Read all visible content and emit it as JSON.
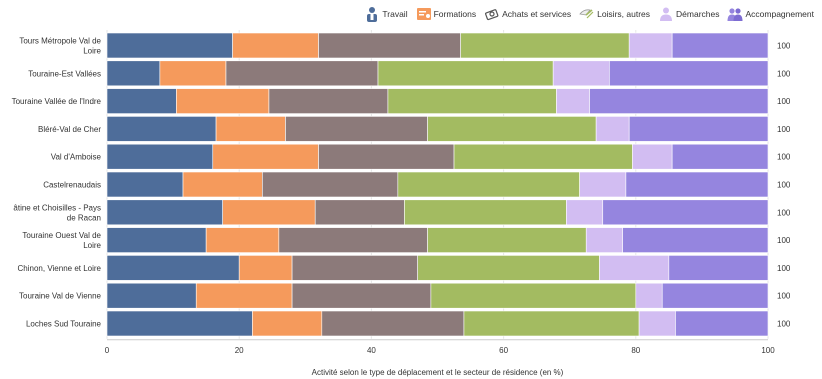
{
  "legend": {
    "items": [
      {
        "label": "Travail",
        "icon": "worker-icon",
        "color": "#4e6d9a"
      },
      {
        "label": "Formations",
        "icon": "diploma-icon",
        "color": "#f59a5c"
      },
      {
        "label": "Achats et services",
        "icon": "money-icon",
        "color": "#8c7a7a"
      },
      {
        "label": "Loisirs, autres",
        "icon": "umbrella-icon",
        "color": "#a3bb61"
      },
      {
        "label": "Démarches",
        "icon": "people-icon",
        "color": "#d2bdf2"
      },
      {
        "label": "Accompagnement",
        "icon": "group-icon",
        "color": "#9585df"
      }
    ]
  },
  "chart_data": {
    "type": "bar",
    "orientation": "horizontal",
    "stacked": true,
    "title": "",
    "xlabel": "Activité selon le type de déplacement et le secteur de résidence (en %)",
    "ylabel": "",
    "xlim": [
      0,
      100
    ],
    "xticks": [
      0,
      20,
      40,
      60,
      80,
      100
    ],
    "grid": true,
    "legend_position": "top-right",
    "categories": [
      "Tours Métropole Val de Loire",
      "Touraine-Est Vallées",
      "Touraine Vallée de l'Indre",
      "Bléré-Val de Cher",
      "Val d'Amboise",
      "Castelrenaudais",
      "Gâtine et Choisilles - Pays de Racan",
      "Touraine Ouest Val de Loire",
      "Chinon, Vienne et Loire",
      "Touraine Val de Vienne",
      "Loches Sud Touraine"
    ],
    "category_label_lines": [
      [
        "Tours Métropole Val de",
        "Loire"
      ],
      [
        "Touraine-Est Vallées"
      ],
      [
        "Touraine Vallée de l'Indre"
      ],
      [
        "Bléré-Val de Cher"
      ],
      [
        "Val d'Amboise"
      ],
      [
        "Castelrenaudais"
      ],
      [
        "âtine et Choisilles - Pays",
        "de Racan"
      ],
      [
        "Touraine Ouest Val de",
        "Loire"
      ],
      [
        "Chinon, Vienne et Loire"
      ],
      [
        "Touraine Val de Vienne"
      ],
      [
        "Loches Sud Touraine"
      ]
    ],
    "totals": [
      "100",
      "100",
      "100",
      "100",
      "100",
      "100",
      "100",
      "100",
      "100",
      "100",
      "100"
    ],
    "series": [
      {
        "name": "Travail",
        "color": "#4e6d9a",
        "values": [
          19,
          8,
          10.5,
          16.5,
          16,
          11.5,
          17.5,
          15,
          20,
          13.5,
          22
        ]
      },
      {
        "name": "Formations",
        "color": "#f59a5c",
        "values": [
          13,
          10,
          14,
          10.5,
          16,
          12,
          14,
          11,
          8,
          14.5,
          10.5
        ]
      },
      {
        "name": "Achats et services",
        "color": "#8c7a7a",
        "values": [
          21.5,
          23,
          18,
          21.5,
          20.5,
          20.5,
          13.5,
          22.5,
          19,
          21,
          21.5
        ]
      },
      {
        "name": "Loisirs, autres",
        "color": "#a3bb61",
        "values": [
          25.5,
          26.5,
          25.5,
          25.5,
          27,
          27.5,
          24.5,
          24,
          27.5,
          31,
          26.5
        ]
      },
      {
        "name": "Démarches",
        "color": "#d2bdf2",
        "values": [
          6.5,
          8.5,
          5,
          5,
          6,
          7,
          5.5,
          5.5,
          10.5,
          4,
          5.5
        ]
      },
      {
        "name": "Accompagnement",
        "color": "#9585df",
        "values": [
          14.5,
          24,
          27,
          21,
          14.5,
          21.5,
          25,
          22,
          15,
          16,
          14
        ]
      }
    ]
  }
}
